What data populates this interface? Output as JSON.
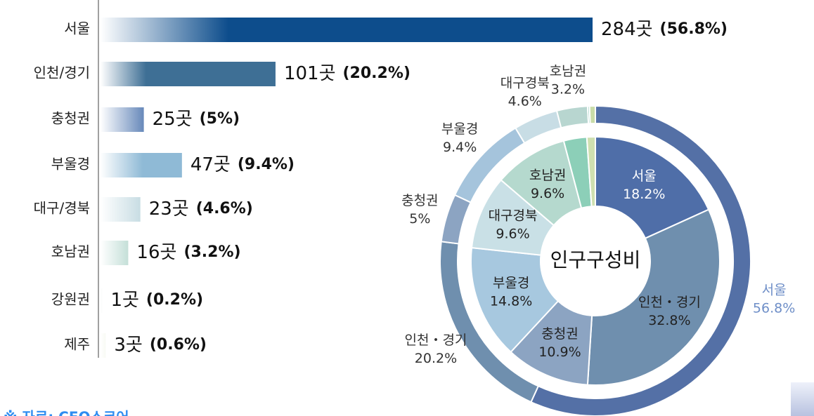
{
  "chart_data": [
    {
      "type": "hbar",
      "categories": [
        "서울",
        "인천/경기",
        "충청권",
        "부울경",
        "대구/경북",
        "호남권",
        "강원권",
        "제주"
      ],
      "values": [
        284,
        101,
        25,
        47,
        23,
        16,
        1,
        3
      ],
      "value_labels": [
        "284곳",
        "101곳",
        "25곳",
        "47곳",
        "23곳",
        "16곳",
        "1곳",
        "3곳"
      ],
      "shares": [
        56.8,
        20.2,
        5,
        9.4,
        4.6,
        3.2,
        0.2,
        0.6
      ],
      "share_labels": [
        "(56.8%)",
        "(20.2%)",
        "(5%)",
        "(9.4%)",
        "(4.6%)",
        "(3.2%)",
        "(0.2%)",
        "(0.6%)"
      ],
      "colors": [
        "#0d4d8c",
        "#3e6f95",
        "#6b8cbc",
        "#8fbad6",
        "#c5dbe2",
        "#a6cfc4",
        "#8aa39c",
        "#c4d6a0"
      ],
      "xlim": [
        0,
        284
      ],
      "note": "※ 자료: CEO스코어"
    },
    {
      "type": "donut",
      "center_label": "인구구성비",
      "series": [
        {
          "categories": [
            "서울",
            "인천・경기",
            "충청권",
            "부울경",
            "대구경북",
            "호남권",
            null,
            null
          ],
          "values": [
            56.8,
            20.2,
            5,
            9.4,
            4.6,
            3.2,
            0.2,
            0.6
          ],
          "value_labels": [
            "56.8%",
            "20.2%",
            "5%",
            "9.4%",
            "4.6%",
            "3.2%",
            null,
            null
          ],
          "colors": [
            "#5470a6",
            "#6f8fae",
            "#8ca4c2",
            "#a5c4dc",
            "#c8dde5",
            "#b8d6d0",
            "#9ccfbf",
            "#c9dca8"
          ]
        },
        {
          "categories": [
            "서울",
            "인천・경기",
            "충청권",
            "부울경",
            "대구경북",
            "호남권",
            null,
            null
          ],
          "values": [
            18.2,
            32.8,
            10.9,
            14.8,
            9.6,
            9.6,
            3.0,
            1.1
          ],
          "value_labels": [
            "18.2%",
            "32.8%",
            "10.9%",
            "14.8%",
            "9.6%",
            "9.6%",
            null,
            null
          ],
          "colors": [
            "#4f6ea8",
            "#6f8fae",
            "#8ca4c2",
            "#a7c8df",
            "#c9e0e6",
            "#b5d9ce",
            "#8ccfb8",
            "#cfe0b0"
          ]
        }
      ]
    }
  ]
}
